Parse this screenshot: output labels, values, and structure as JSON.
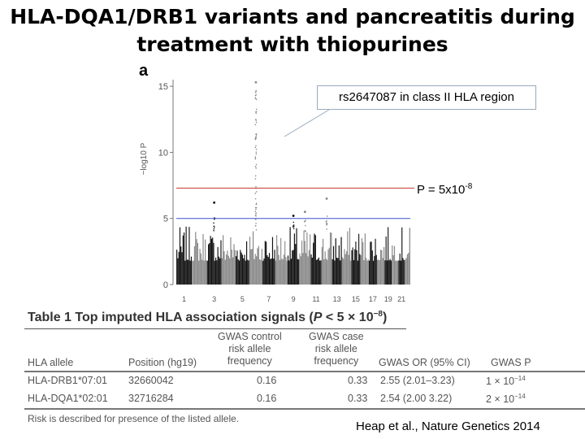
{
  "slide": {
    "title_line1": "HLA-DQA1/DRB1 variants and pancreatitis during",
    "title_line2": "treatment with thiopurines",
    "panel_letter": "a",
    "callout": "rs2647087 in class II HLA region",
    "pvalue_text": "P = 5x10",
    "pvalue_exp": "-8",
    "citation": "Heap et al., Nature Genetics 2014"
  },
  "chart_data": {
    "type": "scatter",
    "ylabel": "−log10 P",
    "ylim": [
      0,
      15.5
    ],
    "yticks": [
      0,
      5,
      10,
      15
    ],
    "xticks": [
      "1",
      "3",
      "5",
      "7",
      "9",
      "11",
      "13",
      "15",
      "17",
      "19",
      "21"
    ],
    "chromosomes": 22,
    "thresholds": {
      "genome_wide": 7.3,
      "suggestive": 5
    },
    "threshold_colors": {
      "genome_wide": "#c0392b",
      "suggestive": "#3a55c8"
    },
    "chrom_colors": [
      "#111111",
      "#8a8a8a"
    ],
    "top_hit": {
      "chromosome": 6,
      "neglog10p": 15.3
    },
    "other_peaks": [
      {
        "chromosome": 3,
        "neglog10p": 6.2
      },
      {
        "chromosome": 9,
        "neglog10p": 5.2
      },
      {
        "chromosome": 10,
        "neglog10p": 5.5
      },
      {
        "chromosome": 12,
        "neglog10p": 6.5
      }
    ]
  },
  "table": {
    "title_prefix": "Table 1  Top imputed HLA association signals (",
    "title_p": "P",
    "title_mid": " < 5 × 10",
    "title_exp": "−8",
    "title_suffix": ")",
    "headers": {
      "allele": "HLA allele",
      "position": "Position (hg19)",
      "ctrl": [
        "GWAS control",
        "risk allele",
        "frequency"
      ],
      "case": [
        "GWAS case",
        "risk allele",
        "frequency"
      ],
      "or": "GWAS OR (95% CI)",
      "p": "GWAS P"
    },
    "rows": [
      {
        "allele": "HLA-DRB1*07:01",
        "position": "32660042",
        "ctrl": "0.16",
        "case": "0.33",
        "or": "2.55 (2.01–3.23)",
        "p": "1 × 10",
        "p_exp": "−14"
      },
      {
        "allele": "HLA-DQA1*02:01",
        "position": "32716284",
        "ctrl": "0.16",
        "case": "0.33",
        "or": "2.54 (2.00  3.22)",
        "p": "2 × 10",
        "p_exp": "−14"
      }
    ],
    "footnote": "Risk is described for presence of the listed allele."
  }
}
